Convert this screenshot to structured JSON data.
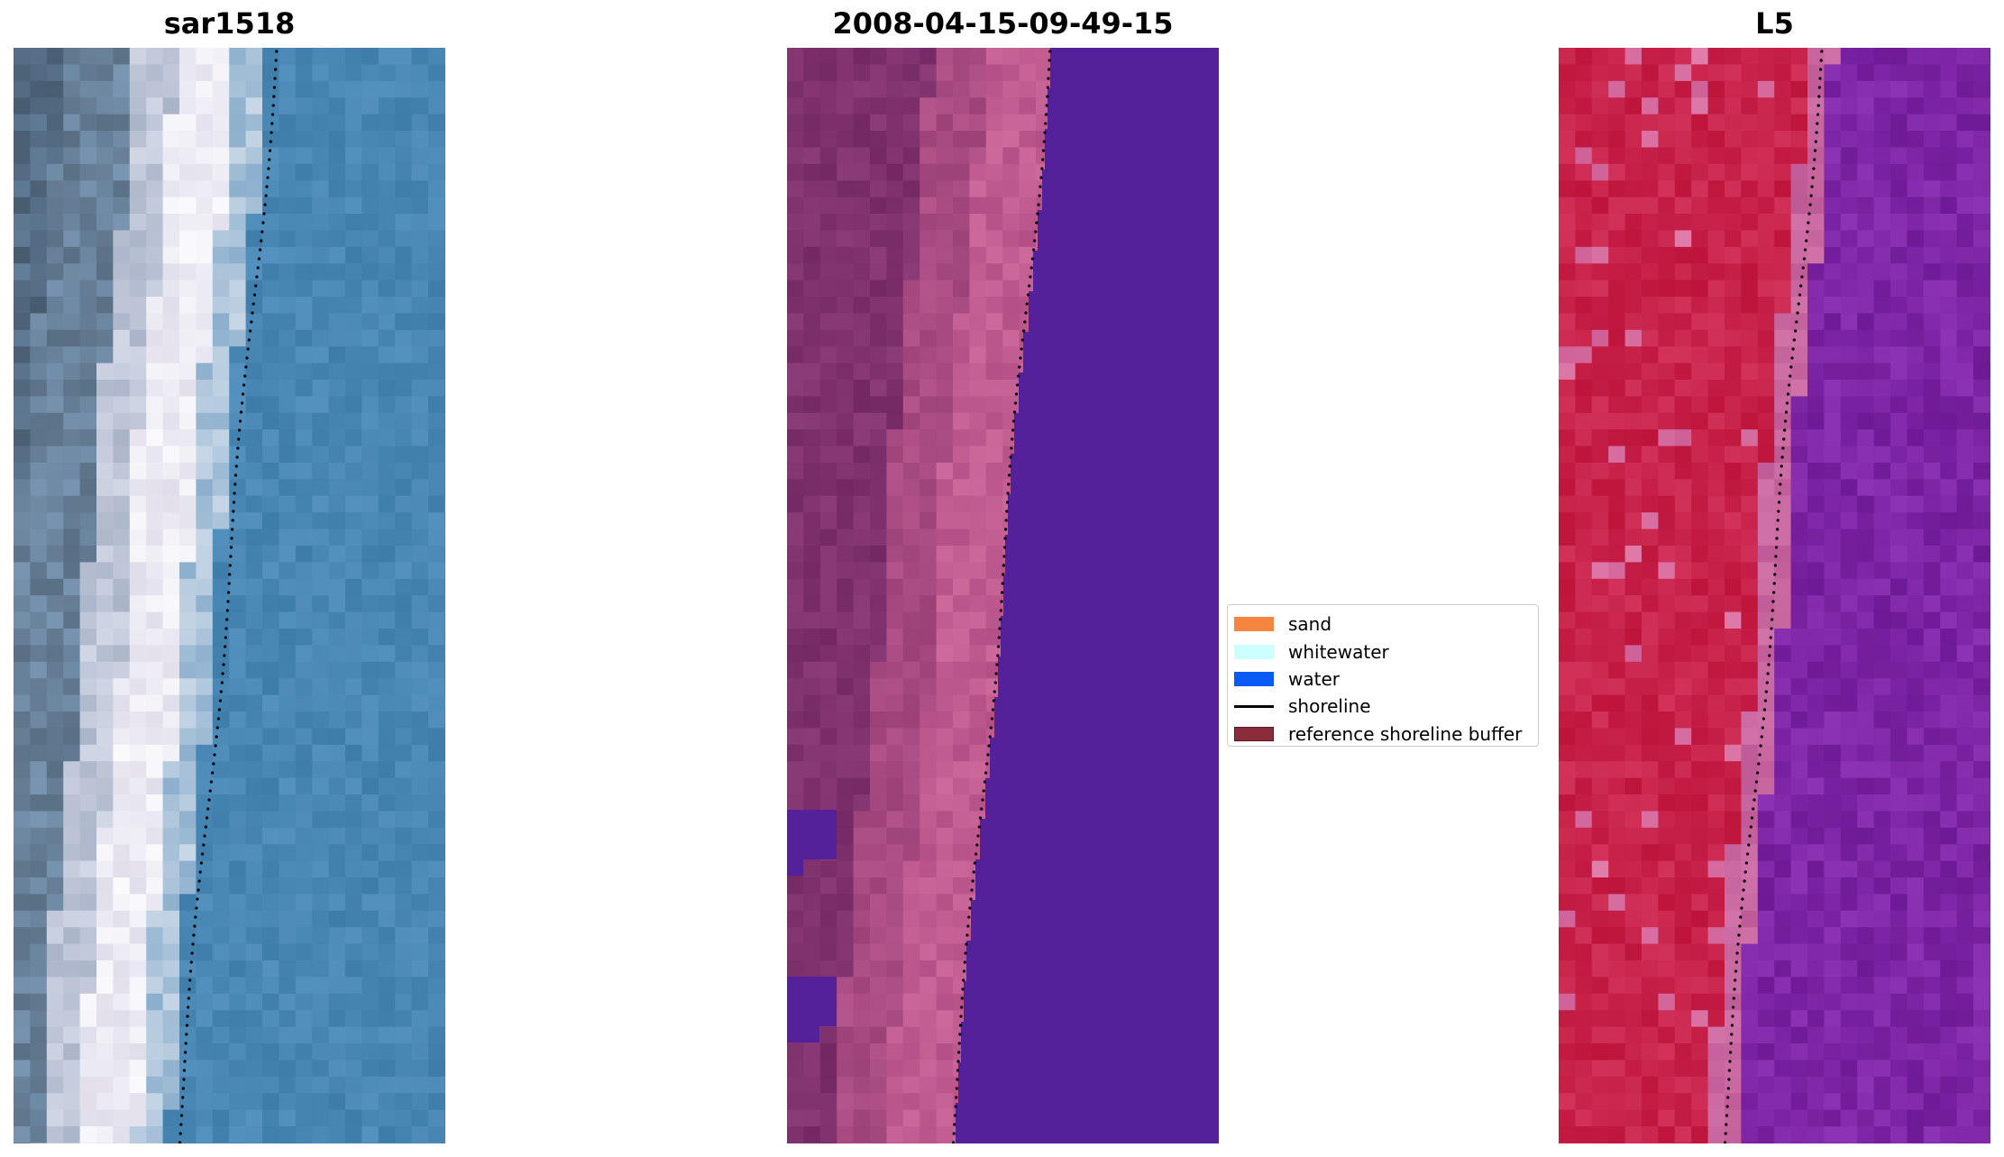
{
  "panels": [
    {
      "title": "sar1518",
      "kind": "rgb"
    },
    {
      "title": "2008-04-15-09-49-15",
      "kind": "classified"
    },
    {
      "title": "L5",
      "kind": "index"
    }
  ],
  "legend": {
    "items": [
      {
        "label": "sand",
        "type": "patch",
        "color": "#f5853f"
      },
      {
        "label": "whitewater",
        "type": "patch",
        "color": "#ccfffe"
      },
      {
        "label": "water",
        "type": "patch",
        "color": "#0a5bf5"
      },
      {
        "label": "shoreline",
        "type": "line",
        "color": "#000000"
      },
      {
        "label": "reference shoreline buffer",
        "type": "patch",
        "color": "#8b2c3a"
      }
    ]
  },
  "colors": {
    "classified_water": "#54219a",
    "rgb_water": "#4a86b5",
    "index_land": "#c31a46",
    "index_water": "#7a20a0"
  }
}
